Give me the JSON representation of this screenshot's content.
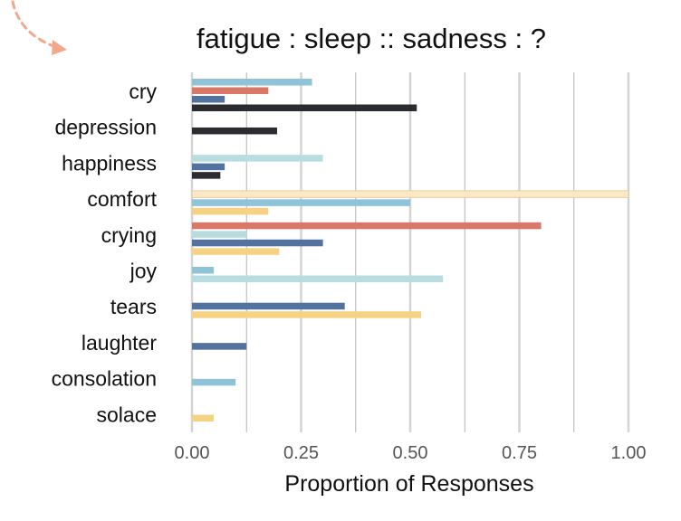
{
  "chart_data": {
    "type": "bar",
    "orientation": "horizontal",
    "title": "fatigue : sleep :: sadness : ?",
    "xlabel": "Proportion of Responses",
    "ylabel": "",
    "xlim": [
      0,
      1
    ],
    "xticks": [
      "0.00",
      "0.25",
      "0.50",
      "0.75",
      "1.00"
    ],
    "grid": true,
    "legend": "none",
    "colors": {
      "cream": "#fbe8c4",
      "light_teal": "#b7dde0",
      "sky_blue": "#8ec3d8",
      "salmon": "#d97868",
      "steel_blue": "#52739f",
      "charcoal": "#2a2c2f",
      "gold": "#f6d384",
      "decor_arrow": "#f2a88c"
    },
    "categories": [
      {
        "label": "cry",
        "bars": [
          {
            "color": "sky_blue",
            "value": 0.275
          },
          {
            "color": "salmon",
            "value": 0.175
          },
          {
            "color": "steel_blue",
            "value": 0.075
          },
          {
            "color": "charcoal",
            "value": 0.515
          }
        ]
      },
      {
        "label": "depression",
        "bars": [
          {
            "color": "charcoal",
            "value": 0.195
          }
        ]
      },
      {
        "label": "happiness",
        "bars": [
          {
            "color": "light_teal",
            "value": 0.3
          },
          {
            "color": "steel_blue",
            "value": 0.075
          },
          {
            "color": "charcoal",
            "value": 0.065
          }
        ]
      },
      {
        "label": "comfort",
        "bars": [
          {
            "color": "cream",
            "value": 1.0
          },
          {
            "color": "sky_blue",
            "value": 0.5
          },
          {
            "color": "gold",
            "value": 0.175
          }
        ]
      },
      {
        "label": "crying",
        "bars": [
          {
            "color": "salmon",
            "value": 0.8
          },
          {
            "color": "light_teal",
            "value": 0.125
          },
          {
            "color": "steel_blue",
            "value": 0.3
          },
          {
            "color": "gold",
            "value": 0.2
          }
        ]
      },
      {
        "label": "joy",
        "bars": [
          {
            "color": "sky_blue",
            "value": 0.05
          },
          {
            "color": "light_teal",
            "value": 0.575
          }
        ]
      },
      {
        "label": "tears",
        "bars": [
          {
            "color": "steel_blue",
            "value": 0.35
          },
          {
            "color": "gold",
            "value": 0.525
          }
        ]
      },
      {
        "label": "laughter",
        "bars": [
          {
            "color": "steel_blue",
            "value": 0.125
          }
        ]
      },
      {
        "label": "consolation",
        "bars": [
          {
            "color": "sky_blue",
            "value": 0.1
          }
        ]
      },
      {
        "label": "solace",
        "bars": [
          {
            "color": "gold",
            "value": 0.05
          }
        ]
      }
    ]
  }
}
